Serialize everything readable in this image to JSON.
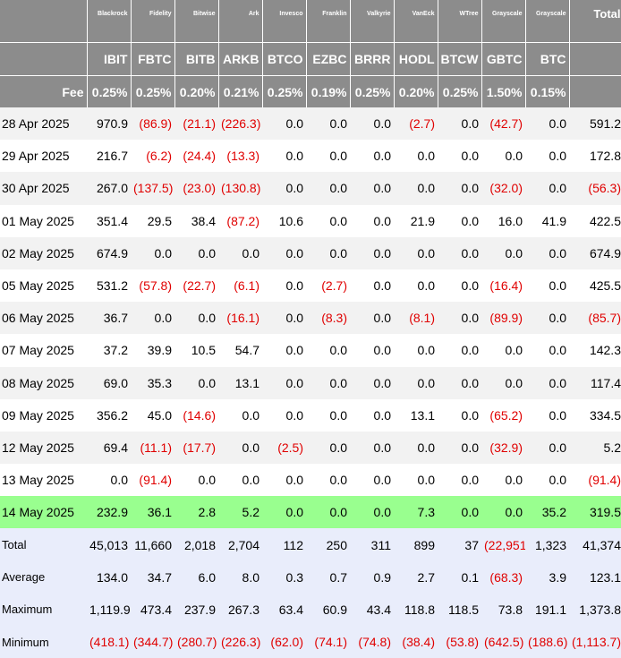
{
  "header": {
    "issuers": [
      "Blackrock",
      "Fidelity",
      "Bitwise",
      "Ark",
      "Invesco",
      "Franklin",
      "Valkyrie",
      "VanEck",
      "WTree",
      "Grayscale",
      "Grayscale"
    ],
    "total_label": "Total",
    "tickers": [
      "IBIT",
      "FBTC",
      "BITB",
      "ARKB",
      "BTCO",
      "EZBC",
      "BRRR",
      "HODL",
      "BTCW",
      "GBTC",
      "BTC"
    ],
    "fee_label": "Fee",
    "fees": [
      "0.25%",
      "0.25%",
      "0.20%",
      "0.21%",
      "0.25%",
      "0.19%",
      "0.25%",
      "0.20%",
      "0.25%",
      "1.50%",
      "0.15%"
    ]
  },
  "rows": [
    {
      "date": "28 Apr 2025",
      "values": [
        "970.9",
        "(86.9)",
        "(21.1)",
        "(226.3)",
        "0.0",
        "0.0",
        "0.0",
        "(2.7)",
        "0.0",
        "(42.7)",
        "0.0"
      ],
      "total": "591.2"
    },
    {
      "date": "29 Apr 2025",
      "values": [
        "216.7",
        "(6.2)",
        "(24.4)",
        "(13.3)",
        "0.0",
        "0.0",
        "0.0",
        "0.0",
        "0.0",
        "0.0",
        "0.0"
      ],
      "total": "172.8"
    },
    {
      "date": "30 Apr 2025",
      "values": [
        "267.0",
        "(137.5)",
        "(23.0)",
        "(130.8)",
        "0.0",
        "0.0",
        "0.0",
        "0.0",
        "0.0",
        "(32.0)",
        "0.0"
      ],
      "total": "(56.3)"
    },
    {
      "date": "01 May 2025",
      "values": [
        "351.4",
        "29.5",
        "38.4",
        "(87.2)",
        "10.6",
        "0.0",
        "0.0",
        "21.9",
        "0.0",
        "16.0",
        "41.9"
      ],
      "total": "422.5"
    },
    {
      "date": "02 May 2025",
      "values": [
        "674.9",
        "0.0",
        "0.0",
        "0.0",
        "0.0",
        "0.0",
        "0.0",
        "0.0",
        "0.0",
        "0.0",
        "0.0"
      ],
      "total": "674.9"
    },
    {
      "date": "05 May 2025",
      "values": [
        "531.2",
        "(57.8)",
        "(22.7)",
        "(6.1)",
        "0.0",
        "(2.7)",
        "0.0",
        "0.0",
        "0.0",
        "(16.4)",
        "0.0"
      ],
      "total": "425.5"
    },
    {
      "date": "06 May 2025",
      "values": [
        "36.7",
        "0.0",
        "0.0",
        "(16.1)",
        "0.0",
        "(8.3)",
        "0.0",
        "(8.1)",
        "0.0",
        "(89.9)",
        "0.0"
      ],
      "total": "(85.7)"
    },
    {
      "date": "07 May 2025",
      "values": [
        "37.2",
        "39.9",
        "10.5",
        "54.7",
        "0.0",
        "0.0",
        "0.0",
        "0.0",
        "0.0",
        "0.0",
        "0.0"
      ],
      "total": "142.3"
    },
    {
      "date": "08 May 2025",
      "values": [
        "69.0",
        "35.3",
        "0.0",
        "13.1",
        "0.0",
        "0.0",
        "0.0",
        "0.0",
        "0.0",
        "0.0",
        "0.0"
      ],
      "total": "117.4"
    },
    {
      "date": "09 May 2025",
      "values": [
        "356.2",
        "45.0",
        "(14.6)",
        "0.0",
        "0.0",
        "0.0",
        "0.0",
        "13.1",
        "0.0",
        "(65.2)",
        "0.0"
      ],
      "total": "334.5"
    },
    {
      "date": "12 May 2025",
      "values": [
        "69.4",
        "(11.1)",
        "(17.7)",
        "0.0",
        "(2.5)",
        "0.0",
        "0.0",
        "0.0",
        "0.0",
        "(32.9)",
        "0.0"
      ],
      "total": "5.2"
    },
    {
      "date": "13 May 2025",
      "values": [
        "0.0",
        "(91.4)",
        "0.0",
        "0.0",
        "0.0",
        "0.0",
        "0.0",
        "0.0",
        "0.0",
        "0.0",
        "0.0"
      ],
      "total": "(91.4)"
    },
    {
      "date": "14 May 2025",
      "values": [
        "232.9",
        "36.1",
        "2.8",
        "5.2",
        "0.0",
        "0.0",
        "0.0",
        "7.3",
        "0.0",
        "0.0",
        "35.2"
      ],
      "total": "319.5"
    }
  ],
  "highlight_color": "#99ff8f",
  "negative_color": "#e00000",
  "header_color": "#8c8c8c",
  "stats_color": "#e9edfb",
  "stats": [
    {
      "label": "Total",
      "values": [
        "45,013",
        "11,660",
        "2,018",
        "2,704",
        "112",
        "250",
        "311",
        "899",
        "37",
        "(22,951)",
        "1,323"
      ],
      "total": "41,374"
    },
    {
      "label": "Average",
      "values": [
        "134.0",
        "34.7",
        "6.0",
        "8.0",
        "0.3",
        "0.7",
        "0.9",
        "2.7",
        "0.1",
        "(68.3)",
        "3.9"
      ],
      "total": "123.1"
    },
    {
      "label": "Maximum",
      "values": [
        "1,119.9",
        "473.4",
        "237.9",
        "267.3",
        "63.4",
        "60.9",
        "43.4",
        "118.8",
        "118.5",
        "73.8",
        "191.1"
      ],
      "total": "1,373.8"
    },
    {
      "label": "Minimum",
      "values": [
        "(418.1)",
        "(344.7)",
        "(280.7)",
        "(226.3)",
        "(62.0)",
        "(74.1)",
        "(74.8)",
        "(38.4)",
        "(53.8)",
        "(642.5)",
        "(188.6)"
      ],
      "total": "(1,113.7)"
    }
  ]
}
